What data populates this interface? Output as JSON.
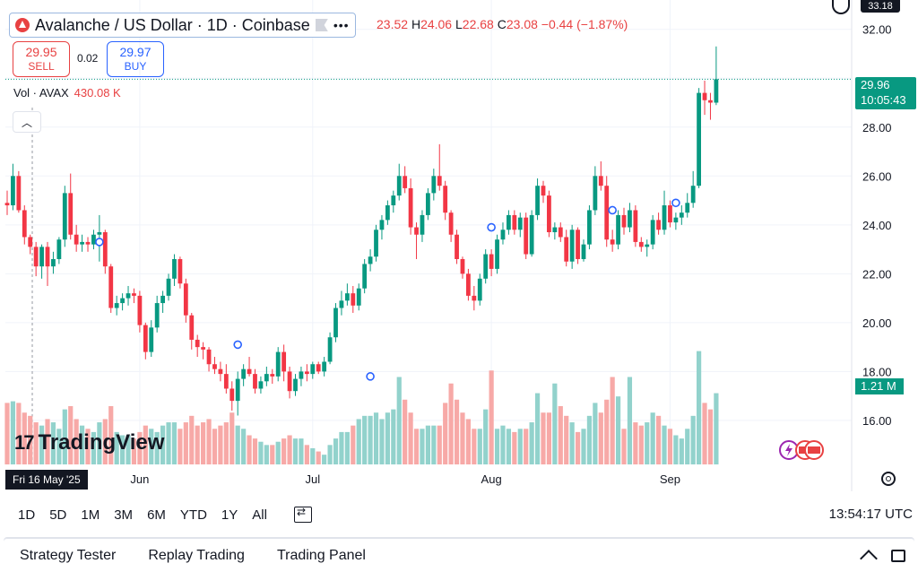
{
  "header": {
    "symbol_title": "Avalanche / US Dollar · 1D · Coinbase",
    "ohlc_open_value": "23.52",
    "ohlc_high_label": "H",
    "ohlc_high": "24.06",
    "ohlc_low_label": "L",
    "ohlc_low": "22.68",
    "ohlc_close_label": "C",
    "ohlc_close": "23.08",
    "ohlc_change": "−0.44 (−1.87%)"
  },
  "trade": {
    "sell_price": "29.95",
    "sell_label": "SELL",
    "spread": "0.02",
    "buy_price": "29.97",
    "buy_label": "BUY"
  },
  "volume_legend": {
    "label": "Vol · AVAX",
    "value": "430.08 K"
  },
  "price_scale": {
    "top_partial": "33.18",
    "current_price": "29.96",
    "countdown": "10:05:43",
    "volume_tag": "1.21 M"
  },
  "brand": {
    "mark": "17",
    "name": "TradingView"
  },
  "time_axis": {
    "cursor_date": "Fri 16 May '25"
  },
  "toolbar": {
    "ranges": [
      "1D",
      "5D",
      "1M",
      "3M",
      "6M",
      "YTD",
      "1Y",
      "All"
    ],
    "clock": "13:54:17 UTC"
  },
  "bottom_panel": {
    "tabs": [
      "Strategy Tester",
      "Replay Trading",
      "Trading Panel"
    ]
  },
  "colors": {
    "up": "#089981",
    "down": "#f23645",
    "vol_up": "#92d2cc",
    "vol_down": "#f7a9a7",
    "accent": "#2962ff"
  },
  "chart_data": {
    "type": "candlestick",
    "y_ticks": [
      16,
      18,
      20,
      22,
      24,
      26,
      28,
      30,
      32
    ],
    "y_tick_labels": [
      "16.00",
      "18.00",
      "20.00",
      "22.00",
      "24.00",
      "26.00",
      "28.00",
      "32.00"
    ],
    "x_tick_labels": [
      {
        "label": "Jun",
        "index": 23
      },
      {
        "label": "Jul",
        "index": 53
      },
      {
        "label": "Aug",
        "index": 84
      },
      {
        "label": "Sep",
        "index": 115
      }
    ],
    "ylim": [
      14.2,
      33.2
    ],
    "current_price": 29.96,
    "candles": [
      [
        24.9,
        25.4,
        24.4,
        24.8
      ],
      [
        24.8,
        26.5,
        24.6,
        26.0
      ],
      [
        26.0,
        26.2,
        24.5,
        24.6
      ],
      [
        24.6,
        24.8,
        23.2,
        23.5
      ],
      [
        23.5,
        23.6,
        22.8,
        23.1
      ],
      [
        23.1,
        23.3,
        21.9,
        22.3
      ],
      [
        22.3,
        23.2,
        21.8,
        23.1
      ],
      [
        23.1,
        23.3,
        21.5,
        22.3
      ],
      [
        22.3,
        22.9,
        22.0,
        22.6
      ],
      [
        22.6,
        23.5,
        22.4,
        23.4
      ],
      [
        23.4,
        25.6,
        23.1,
        25.3
      ],
      [
        25.3,
        26.1,
        23.4,
        23.6
      ],
      [
        23.6,
        24.0,
        22.9,
        23.2
      ],
      [
        23.2,
        23.6,
        22.9,
        23.3
      ],
      [
        23.3,
        23.5,
        22.9,
        23.2
      ],
      [
        23.2,
        23.8,
        23.0,
        23.6
      ],
      [
        23.6,
        24.4,
        22.5,
        23.7
      ],
      [
        23.7,
        23.8,
        22.0,
        22.3
      ],
      [
        22.3,
        22.4,
        20.4,
        20.6
      ],
      [
        20.6,
        21.1,
        20.3,
        20.8
      ],
      [
        20.8,
        21.2,
        20.5,
        21.0
      ],
      [
        21.0,
        21.5,
        20.7,
        21.2
      ],
      [
        21.2,
        21.4,
        20.8,
        21.1
      ],
      [
        21.1,
        21.3,
        19.6,
        19.9
      ],
      [
        19.9,
        20.0,
        18.5,
        18.8
      ],
      [
        18.8,
        20.1,
        18.6,
        19.8
      ],
      [
        19.8,
        21.1,
        19.6,
        20.8
      ],
      [
        20.8,
        21.3,
        20.4,
        21.1
      ],
      [
        21.1,
        22.0,
        20.9,
        21.8
      ],
      [
        21.8,
        22.8,
        21.5,
        22.6
      ],
      [
        22.6,
        22.7,
        21.4,
        21.6
      ],
      [
        21.6,
        21.8,
        20.0,
        20.3
      ],
      [
        20.3,
        20.4,
        18.9,
        19.3
      ],
      [
        19.3,
        19.5,
        18.6,
        19.0
      ],
      [
        19.0,
        19.2,
        18.5,
        18.9
      ],
      [
        18.9,
        19.0,
        18.0,
        18.3
      ],
      [
        18.3,
        18.6,
        17.9,
        18.1
      ],
      [
        18.1,
        18.4,
        17.6,
        17.9
      ],
      [
        17.9,
        18.3,
        17.1,
        17.3
      ],
      [
        17.3,
        17.6,
        16.4,
        16.8
      ],
      [
        16.8,
        18.0,
        16.2,
        17.7
      ],
      [
        17.7,
        18.3,
        17.4,
        18.1
      ],
      [
        18.1,
        18.6,
        17.8,
        17.9
      ],
      [
        17.9,
        18.1,
        17.1,
        17.3
      ],
      [
        17.3,
        17.8,
        17.1,
        17.6
      ],
      [
        17.6,
        18.2,
        17.4,
        17.9
      ],
      [
        17.9,
        18.1,
        17.5,
        17.8
      ],
      [
        17.8,
        19.0,
        17.6,
        18.8
      ],
      [
        18.8,
        19.1,
        17.6,
        18.0
      ],
      [
        18.0,
        18.2,
        16.9,
        17.2
      ],
      [
        17.2,
        17.9,
        17.0,
        17.7
      ],
      [
        17.7,
        18.2,
        17.4,
        18.0
      ],
      [
        18.0,
        18.3,
        17.6,
        17.9
      ],
      [
        17.9,
        18.4,
        17.7,
        18.3
      ],
      [
        18.3,
        18.4,
        17.9,
        18.0
      ],
      [
        18.0,
        18.6,
        17.8,
        18.4
      ],
      [
        18.4,
        19.6,
        18.3,
        19.4
      ],
      [
        19.4,
        20.8,
        19.2,
        20.6
      ],
      [
        20.6,
        21.3,
        20.3,
        20.9
      ],
      [
        20.9,
        21.6,
        20.7,
        21.2
      ],
      [
        21.2,
        21.5,
        20.4,
        20.7
      ],
      [
        20.7,
        21.6,
        20.5,
        21.4
      ],
      [
        21.4,
        22.6,
        21.2,
        22.4
      ],
      [
        22.4,
        23.0,
        22.1,
        22.7
      ],
      [
        22.7,
        24.0,
        22.5,
        23.8
      ],
      [
        23.8,
        24.4,
        23.4,
        24.2
      ],
      [
        24.2,
        25.0,
        24.0,
        24.8
      ],
      [
        24.8,
        25.4,
        24.5,
        25.2
      ],
      [
        25.2,
        26.5,
        25.0,
        26.0
      ],
      [
        26.0,
        26.4,
        25.3,
        25.5
      ],
      [
        25.5,
        25.9,
        23.6,
        23.9
      ],
      [
        23.9,
        24.1,
        22.6,
        23.6
      ],
      [
        23.6,
        24.6,
        23.3,
        24.4
      ],
      [
        24.4,
        25.5,
        24.2,
        25.3
      ],
      [
        25.3,
        26.3,
        25.0,
        26.0
      ],
      [
        26.0,
        27.3,
        25.4,
        25.6
      ],
      [
        25.6,
        25.8,
        24.2,
        24.5
      ],
      [
        24.5,
        24.6,
        23.3,
        23.6
      ],
      [
        23.6,
        23.8,
        22.4,
        22.6
      ],
      [
        22.6,
        22.7,
        21.8,
        22.0
      ],
      [
        22.0,
        22.2,
        20.9,
        21.1
      ],
      [
        21.1,
        21.5,
        20.5,
        20.9
      ],
      [
        20.9,
        22.0,
        20.7,
        21.8
      ],
      [
        21.8,
        23.0,
        21.6,
        22.8
      ],
      [
        22.8,
        23.0,
        21.9,
        22.2
      ],
      [
        22.2,
        23.6,
        22.0,
        23.4
      ],
      [
        23.4,
        24.1,
        23.2,
        23.8
      ],
      [
        23.8,
        24.6,
        23.6,
        24.4
      ],
      [
        24.4,
        24.6,
        23.6,
        23.8
      ],
      [
        23.8,
        24.5,
        23.5,
        24.3
      ],
      [
        24.3,
        24.5,
        22.6,
        22.8
      ],
      [
        22.8,
        24.6,
        22.7,
        24.4
      ],
      [
        24.4,
        25.9,
        24.2,
        25.6
      ],
      [
        25.6,
        25.8,
        24.9,
        25.2
      ],
      [
        25.2,
        25.4,
        23.5,
        23.7
      ],
      [
        23.7,
        24.1,
        23.4,
        23.9
      ],
      [
        23.9,
        24.1,
        23.3,
        23.5
      ],
      [
        23.5,
        23.8,
        22.3,
        22.5
      ],
      [
        22.5,
        24.0,
        22.2,
        23.8
      ],
      [
        23.8,
        23.9,
        22.4,
        22.6
      ],
      [
        22.6,
        23.4,
        22.5,
        23.2
      ],
      [
        23.2,
        24.8,
        23.0,
        24.6
      ],
      [
        24.6,
        26.4,
        24.4,
        26.0
      ],
      [
        26.0,
        26.6,
        25.4,
        25.6
      ],
      [
        25.6,
        26.0,
        23.1,
        23.4
      ],
      [
        23.4,
        23.8,
        22.9,
        23.2
      ],
      [
        23.2,
        24.6,
        23.0,
        24.4
      ],
      [
        24.4,
        24.7,
        23.6,
        23.9
      ],
      [
        23.9,
        24.9,
        23.7,
        24.6
      ],
      [
        24.6,
        24.8,
        23.1,
        23.3
      ],
      [
        23.3,
        23.5,
        22.9,
        23.1
      ],
      [
        23.1,
        23.4,
        22.7,
        23.2
      ],
      [
        23.2,
        24.4,
        23.0,
        24.2
      ],
      [
        24.2,
        24.5,
        23.6,
        23.8
      ],
      [
        23.8,
        25.4,
        23.6,
        24.8
      ],
      [
        24.8,
        25.0,
        23.9,
        24.1
      ],
      [
        24.1,
        24.5,
        23.8,
        24.3
      ],
      [
        24.3,
        24.8,
        24.0,
        24.5
      ],
      [
        24.5,
        25.3,
        24.3,
        24.9
      ],
      [
        24.9,
        26.2,
        24.7,
        25.6
      ],
      [
        25.6,
        29.6,
        25.5,
        29.4
      ],
      [
        29.4,
        29.9,
        28.5,
        29.1
      ],
      [
        29.1,
        29.4,
        28.3,
        29.0
      ],
      [
        29.0,
        31.3,
        28.9,
        29.96
      ]
    ],
    "volumes": [
      1.9,
      1.95,
      1.9,
      1.6,
      1.5,
      1.3,
      1.2,
      1.4,
      1.3,
      1.1,
      1.7,
      1.8,
      1.4,
      1.2,
      1.1,
      1.0,
      1.3,
      1.4,
      1.8,
      1.0,
      0.9,
      0.9,
      0.8,
      1.0,
      1.2,
      1.1,
      1.0,
      1.2,
      1.3,
      1.3,
      1.1,
      1.3,
      1.5,
      1.2,
      1.3,
      1.4,
      1.1,
      1.2,
      1.3,
      1.6,
      1.2,
      1.1,
      0.9,
      0.8,
      0.7,
      0.6,
      0.6,
      0.7,
      0.8,
      0.9,
      0.8,
      0.8,
      0.6,
      0.5,
      0.4,
      0.3,
      0.6,
      0.8,
      1.0,
      1.0,
      1.2,
      1.4,
      1.5,
      1.5,
      1.6,
      1.4,
      1.6,
      1.7,
      2.7,
      2.0,
      1.6,
      1.1,
      1.1,
      1.2,
      1.2,
      1.2,
      1.9,
      2.5,
      2.0,
      1.6,
      1.4,
      1.1,
      1.1,
      1.7,
      2.9,
      1.1,
      1.2,
      1.1,
      1.0,
      1.1,
      1.1,
      1.3,
      2.2,
      1.6,
      1.6,
      2.5,
      1.8,
      1.5,
      1.3,
      1.0,
      1.1,
      1.5,
      1.9,
      1.6,
      2.0,
      2.7,
      2.1,
      1.1,
      2.7,
      1.3,
      1.2,
      1.3,
      1.6,
      1.5,
      1.2,
      1.1,
      0.9,
      0.8,
      1.1,
      1.5,
      3.5,
      1.9,
      1.7,
      2.2
    ],
    "volume_colors": [
      "d",
      "u",
      "d",
      "d",
      "d",
      "d",
      "u",
      "d",
      "u",
      "u",
      "u",
      "d",
      "d",
      "u",
      "d",
      "u",
      "u",
      "d",
      "d",
      "u",
      "u",
      "u",
      "d",
      "d",
      "d",
      "u",
      "u",
      "u",
      "u",
      "u",
      "d",
      "d",
      "d",
      "d",
      "d",
      "d",
      "d",
      "d",
      "d",
      "d",
      "u",
      "u",
      "d",
      "d",
      "u",
      "u",
      "d",
      "u",
      "d",
      "d",
      "u",
      "u",
      "d",
      "u",
      "d",
      "u",
      "u",
      "u",
      "u",
      "u",
      "d",
      "u",
      "u",
      "u",
      "u",
      "u",
      "u",
      "u",
      "u",
      "d",
      "d",
      "d",
      "u",
      "u",
      "u",
      "d",
      "d",
      "d",
      "d",
      "d",
      "d",
      "d",
      "u",
      "u",
      "d",
      "u",
      "u",
      "u",
      "d",
      "u",
      "d",
      "u",
      "u",
      "d",
      "d",
      "u",
      "d",
      "d",
      "u",
      "d",
      "u",
      "u",
      "u",
      "d",
      "d",
      "d",
      "u",
      "d",
      "u",
      "d",
      "d",
      "u",
      "u",
      "d",
      "u",
      "d",
      "u",
      "u",
      "u",
      "u",
      "u",
      "d",
      "d",
      "u"
    ],
    "markers": [
      {
        "index": 16,
        "price": 23.3
      },
      {
        "index": 40,
        "price": 19.1
      },
      {
        "index": 63,
        "price": 17.8
      },
      {
        "index": 84,
        "price": 23.9
      },
      {
        "index": 105,
        "price": 24.6
      },
      {
        "index": 116,
        "price": 24.9
      }
    ]
  }
}
